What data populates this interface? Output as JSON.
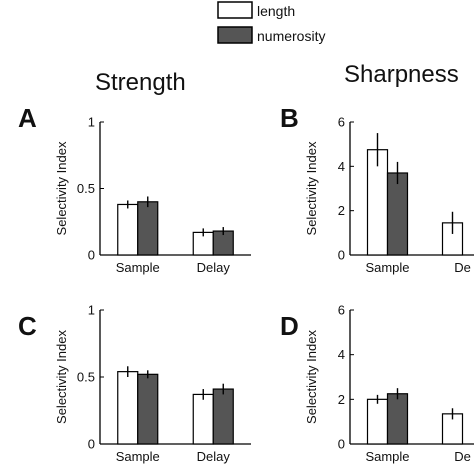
{
  "legend": {
    "entries": [
      {
        "name": "length",
        "color": "#ffffff"
      },
      {
        "name": "numerosity",
        "color": "#555555"
      }
    ]
  },
  "column_titles": [
    "Strength",
    "Sharpness"
  ],
  "chart_data": [
    {
      "type": "bar",
      "panel": "A",
      "column_title": "Strength",
      "ylabel": "Selectivity Index",
      "ylim": [
        0,
        1
      ],
      "yticks": [
        0,
        0.5,
        1
      ],
      "ytick_labels": [
        "0",
        "0.5",
        "1"
      ],
      "categories": [
        "Sample",
        "Delay"
      ],
      "series": [
        {
          "name": "length",
          "values": [
            0.38,
            0.17
          ],
          "errors": [
            0.03,
            0.03
          ]
        },
        {
          "name": "numerosity",
          "values": [
            0.4,
            0.18
          ],
          "errors": [
            0.04,
            0.03
          ]
        }
      ]
    },
    {
      "type": "bar",
      "panel": "B",
      "column_title": "Sharpness",
      "ylabel": "Selectivity Index",
      "ylim": [
        0,
        6
      ],
      "yticks": [
        0,
        2,
        4,
        6
      ],
      "ytick_labels": [
        "0",
        "2",
        "4",
        "6"
      ],
      "categories": [
        "Sample",
        "Delay"
      ],
      "category_labels_shown": [
        "Sample",
        "De"
      ],
      "series": [
        {
          "name": "length",
          "values": [
            4.75,
            1.45
          ],
          "errors": [
            0.75,
            0.5
          ]
        },
        {
          "name": "numerosity",
          "values": [
            3.7,
            null
          ],
          "errors": [
            0.5,
            null
          ]
        }
      ]
    },
    {
      "type": "bar",
      "panel": "C",
      "ylabel": "Selectivity Index",
      "ylim": [
        0,
        1
      ],
      "yticks": [
        0,
        0.5,
        1
      ],
      "ytick_labels": [
        "0",
        "0.5",
        "1"
      ],
      "categories": [
        "Sample",
        "Delay"
      ],
      "series": [
        {
          "name": "length",
          "values": [
            0.54,
            0.37
          ],
          "errors": [
            0.04,
            0.04
          ]
        },
        {
          "name": "numerosity",
          "values": [
            0.52,
            0.41
          ],
          "errors": [
            0.03,
            0.04
          ]
        }
      ]
    },
    {
      "type": "bar",
      "panel": "D",
      "ylabel": "Selectivity Index",
      "ylim": [
        0,
        6
      ],
      "yticks": [
        0,
        2,
        4,
        6
      ],
      "ytick_labels": [
        "0",
        "2",
        "4",
        "6"
      ],
      "categories": [
        "Sample",
        "Delay"
      ],
      "category_labels_shown": [
        "Sample",
        "De"
      ],
      "series": [
        {
          "name": "length",
          "values": [
            2.0,
            1.35
          ],
          "errors": [
            0.2,
            0.25
          ]
        },
        {
          "name": "numerosity",
          "values": [
            2.25,
            null
          ],
          "errors": [
            0.25,
            null
          ]
        }
      ]
    }
  ]
}
